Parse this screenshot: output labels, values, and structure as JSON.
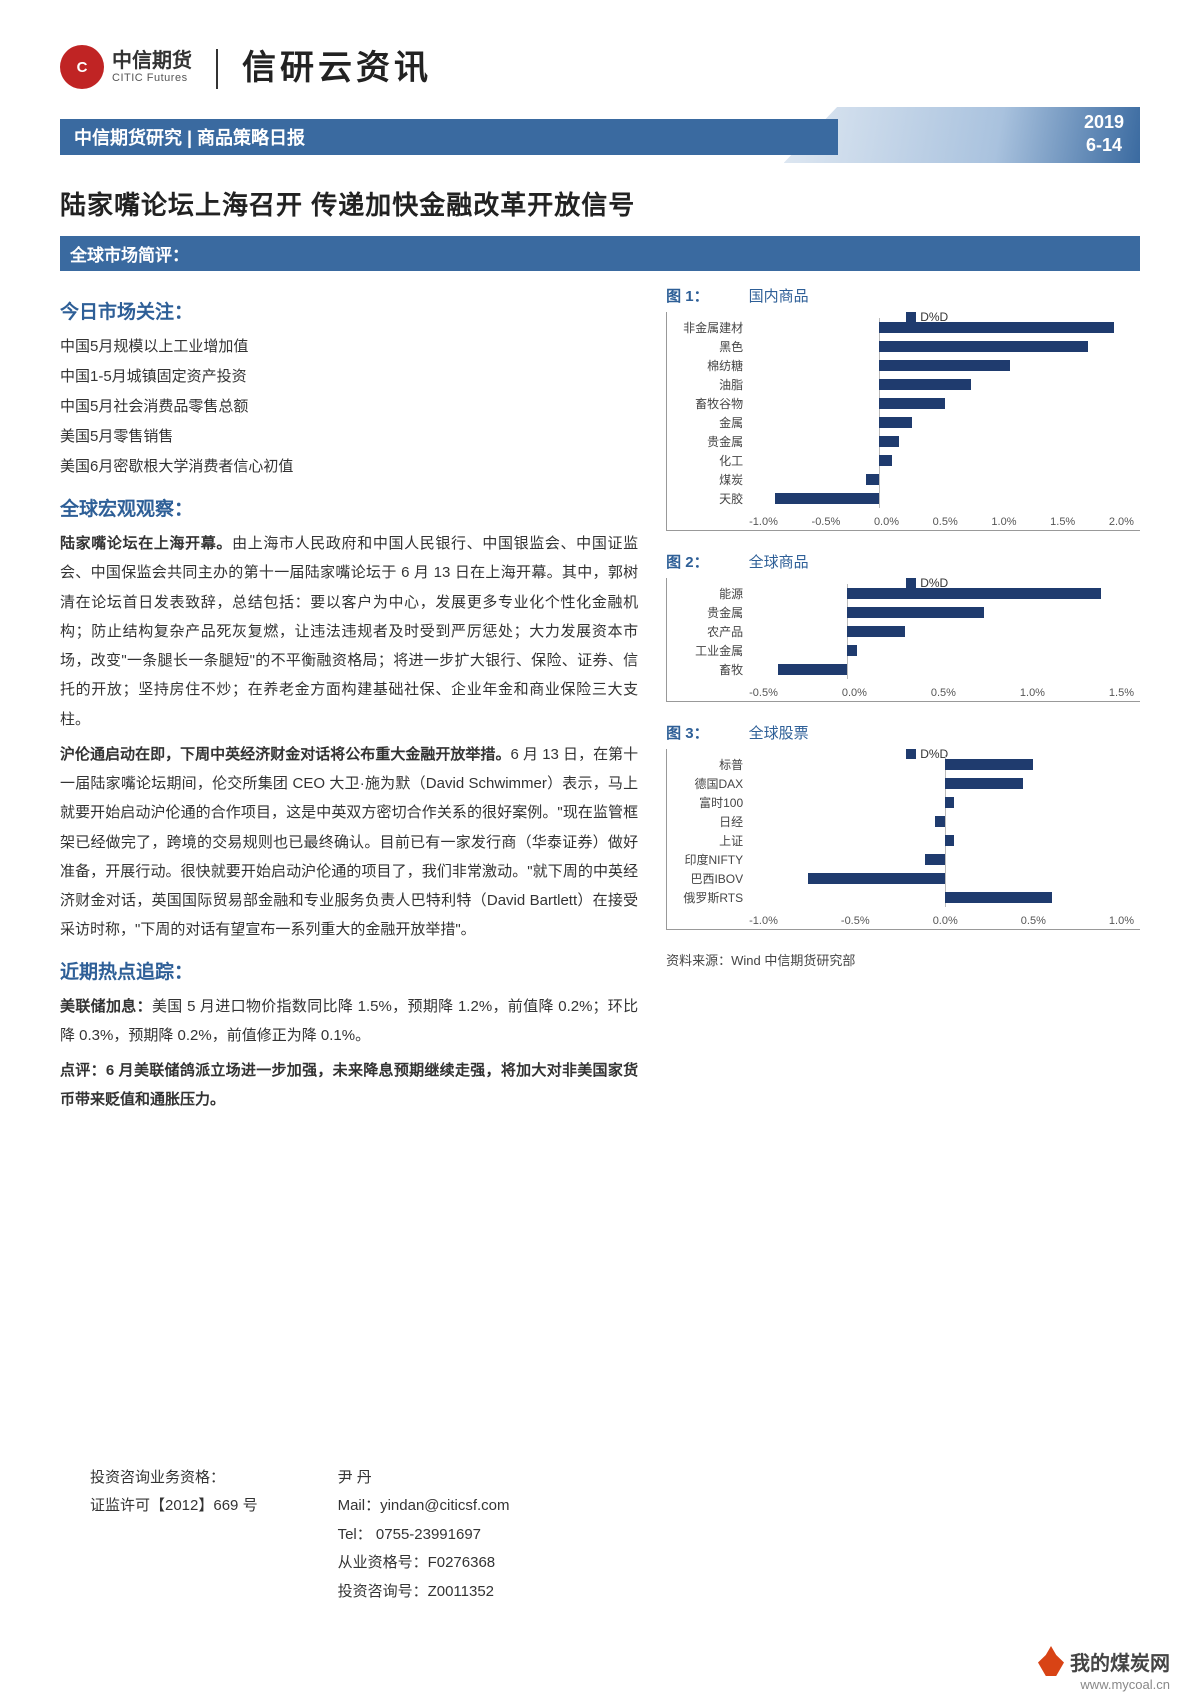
{
  "header": {
    "logo_cn": "中信期货",
    "logo_en": "CITIC Futures",
    "brand": "信研云资讯"
  },
  "banner": {
    "text": "中信期货研究 | 商品策略日报",
    "year": "2019",
    "date": "6-14"
  },
  "title": "陆家嘴论坛上海召开  传递加快金融改革开放信号",
  "subbar": "全球市场简评：",
  "sections": {
    "focus_h": "今日市场关注：",
    "focus_items": [
      "中国5月规模以上工业增加值",
      "中国1-5月城镇固定资产投资",
      "中国5月社会消费品零售总额",
      "美国5月零售销售",
      "美国6月密歇根大学消费者信心初值"
    ],
    "macro_h": "全球宏观观察：",
    "macro_p1_b": "陆家嘴论坛在上海开幕。",
    "macro_p1": "由上海市人民政府和中国人民银行、中国银监会、中国证监会、中国保监会共同主办的第十一届陆家嘴论坛于 6 月 13 日在上海开幕。其中，郭树清在论坛首日发表致辞，总结包括：要以客户为中心，发展更多专业化个性化金融机构；防止结构复杂产品死灰复燃，让违法违规者及时受到严厉惩处；大力发展资本市场，改变\"一条腿长一条腿短\"的不平衡融资格局；将进一步扩大银行、保险、证券、信托的开放；坚持房住不炒；在养老金方面构建基础社保、企业年金和商业保险三大支柱。",
    "macro_p2_b": "沪伦通启动在即，下周中英经济财金对话将公布重大金融开放举措。",
    "macro_p2": "6 月 13 日，在第十一届陆家嘴论坛期间，伦交所集团 CEO 大卫·施为默（David Schwimmer）表示，马上就要开始启动沪伦通的合作项目，这是中英双方密切合作关系的很好案例。\"现在监管框架已经做完了，跨境的交易规则也已最终确认。目前已有一家发行商（华泰证券）做好准备，开展行动。很快就要开始启动沪伦通的项目了，我们非常激动。\"就下周的中英经济财金对话，英国国际贸易部金融和专业服务负责人巴特利特（David Bartlett）在接受采访时称，\"下周的对话有望宣布一系列重大的金融开放举措\"。",
    "hot_h": "近期热点追踪：",
    "hot_p1_b": "美联储加息：",
    "hot_p1": "美国 5 月进口物价指数同比降 1.5%，预期降 1.2%，前值降 0.2%；环比降 0.3%，预期降 0.2%，前值修正为降 0.1%。",
    "hot_p2_b": "点评：6 月美联储鸽派立场进一步加强，未来降息预期继续走强，将加大对非美国家货币带来贬值和通胀压力。"
  },
  "charts": {
    "legend": "D%D",
    "bar_color": "#1f3b6e",
    "c1": {
      "title": "图 1：",
      "label": "国内商品",
      "xmin": -1.0,
      "xmax": 2.0,
      "xtick": 0.5,
      "ticks": [
        "-1.0%",
        "-0.5%",
        "0.0%",
        "0.5%",
        "1.0%",
        "1.5%",
        "2.0%"
      ],
      "items": [
        {
          "cat": "非金属建材",
          "v": 1.8
        },
        {
          "cat": "黑色",
          "v": 1.6
        },
        {
          "cat": "棉纺糖",
          "v": 1.0
        },
        {
          "cat": "油脂",
          "v": 0.7
        },
        {
          "cat": "畜牧谷物",
          "v": 0.5
        },
        {
          "cat": "金属",
          "v": 0.25
        },
        {
          "cat": "贵金属",
          "v": 0.15
        },
        {
          "cat": "化工",
          "v": 0.1
        },
        {
          "cat": "煤炭",
          "v": -0.1
        },
        {
          "cat": "天胶",
          "v": -0.8
        }
      ]
    },
    "c2": {
      "title": "图 2：",
      "label": "全球商品",
      "xmin": -0.5,
      "xmax": 1.5,
      "xtick": 0.5,
      "ticks": [
        "-0.5%",
        "0.0%",
        "0.5%",
        "1.0%",
        "1.5%"
      ],
      "items": [
        {
          "cat": "能源",
          "v": 1.3
        },
        {
          "cat": "贵金属",
          "v": 0.7
        },
        {
          "cat": "农产品",
          "v": 0.3
        },
        {
          "cat": "工业金属",
          "v": 0.05
        },
        {
          "cat": "畜牧",
          "v": -0.35
        }
      ]
    },
    "c3": {
      "title": "图 3：",
      "label": "全球股票",
      "xmin": -1.0,
      "xmax": 1.0,
      "xtick": 0.5,
      "ticks": [
        "-1.0%",
        "-0.5%",
        "0.0%",
        "0.5%",
        "1.0%"
      ],
      "items": [
        {
          "cat": "标普",
          "v": 0.45
        },
        {
          "cat": "德国DAX",
          "v": 0.4
        },
        {
          "cat": "富时100",
          "v": 0.05
        },
        {
          "cat": "日经",
          "v": -0.05
        },
        {
          "cat": "上证",
          "v": 0.05
        },
        {
          "cat": "印度NIFTY",
          "v": -0.1
        },
        {
          "cat": "巴西IBOV",
          "v": -0.7
        },
        {
          "cat": "俄罗斯RTS",
          "v": 0.55
        }
      ]
    },
    "source": "资料来源：Wind  中信期货研究部"
  },
  "footer": {
    "l1": "投资咨询业务资格：",
    "l2": "证监许可【2012】669 号",
    "name": "尹 丹",
    "mail": "Mail：yindan@citicsf.com",
    "tel": "Tel：  0755-23991697",
    "q1": "从业资格号：F0276368",
    "q2": "投资咨询号：Z0011352"
  },
  "watermark": {
    "cn": "我的煤炭网",
    "url": "www.mycoal.cn"
  }
}
